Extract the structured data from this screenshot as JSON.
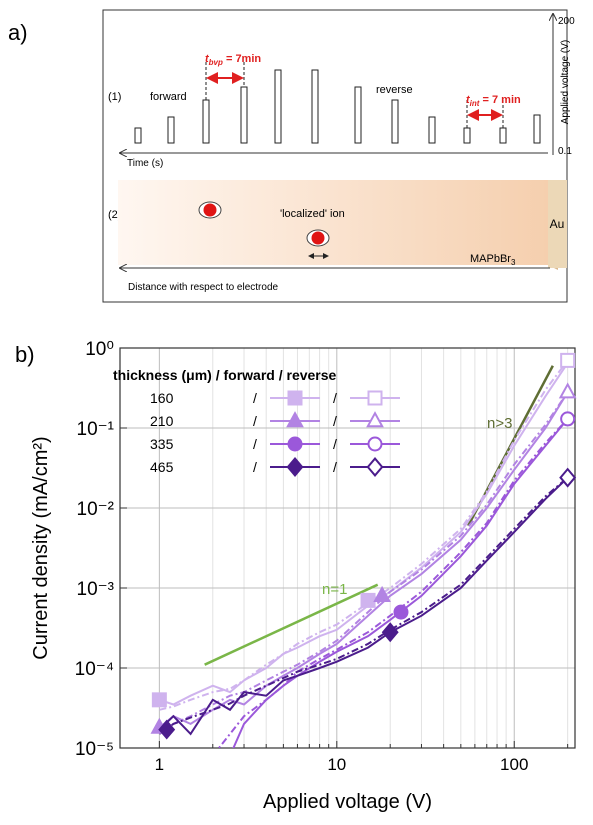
{
  "panel_a": {
    "label": "a)",
    "row1_label": "(1)",
    "row2_label": "(2)",
    "forward": "forward",
    "reverse": "reverse",
    "t_bvp": {
      "t": "t",
      "sub": "bvp",
      "rest": " = 7min"
    },
    "t_int": {
      "t": "t",
      "sub": "int",
      "rest": " = 7 min"
    },
    "time_axis": "Time (s)",
    "voltage_axis": "Applied voltage (V)",
    "voltage_max": "200",
    "voltage_min": "0.1",
    "ion": "'localized' ion",
    "electrode": "Au",
    "material": {
      "main": "MAPbBr",
      "sub": "3"
    },
    "distance_axis": "Distance with respect to electrode"
  },
  "chart_data": {
    "type": "line",
    "panel_label": "b)",
    "x_label": "Applied voltage (V)",
    "y_label": "Current density (mA/cm²)",
    "log_x": true,
    "log_y": true,
    "grid": true,
    "xlim": [
      0.6,
      220
    ],
    "ylim": [
      1e-05,
      1
    ],
    "xticks": [
      1,
      10,
      100
    ],
    "xminor": [
      2,
      3,
      4,
      5,
      6,
      7,
      8,
      9,
      20,
      30,
      40,
      50,
      60,
      70,
      80,
      90,
      200
    ],
    "yticks": [
      {
        "value": 1,
        "label": "10⁰"
      },
      {
        "value": 0.1,
        "label": "10⁻¹"
      },
      {
        "value": 0.01,
        "label": "10⁻²"
      },
      {
        "value": 0.001,
        "label": "10⁻³"
      },
      {
        "value": 0.0001,
        "label": "10⁻⁴"
      },
      {
        "value": 1e-05,
        "label": "10⁻⁵"
      }
    ],
    "legend_title": "thickness (μm) / forward / reverse",
    "legend_separator": "/",
    "x": [
      1,
      1.2,
      1.5,
      2,
      2.5,
      3,
      4,
      5,
      6,
      8,
      10,
      15,
      20,
      30,
      50,
      70,
      100,
      150,
      200
    ],
    "series": [
      {
        "name": "160",
        "color": "#cfb3ee",
        "marker": "square",
        "forward": {
          "values": [
            4e-05,
            3.5e-05,
            4.5e-05,
            6e-05,
            5e-05,
            7e-05,
            0.0001,
            0.00015,
            0.00018,
            0.00025,
            0.0003,
            0.0006,
            0.0009,
            0.0018,
            0.005,
            0.015,
            0.06,
            0.25,
            0.65
          ],
          "marker_x": [
            1,
            15
          ],
          "marker_values": [
            4e-05,
            0.0007
          ]
        },
        "reverse": {
          "values": [
            3e-05,
            3.3e-05,
            4e-05,
            5e-05,
            5.5e-05,
            7e-05,
            0.00011,
            0.00015,
            0.0002,
            0.00028,
            0.00035,
            0.00065,
            0.001,
            0.002,
            0.0055,
            0.016,
            0.07,
            0.3,
            0.7
          ],
          "marker_x": [
            200
          ],
          "marker_values": [
            0.7
          ]
        }
      },
      {
        "name": "210",
        "color": "#b283e3",
        "marker": "triangle",
        "forward": {
          "values": [
            1.8e-05,
            2.5e-05,
            2e-05,
            3e-05,
            4e-05,
            3.5e-05,
            6e-05,
            8e-05,
            0.0001,
            0.00015,
            0.0002,
            0.00045,
            0.0008,
            0.0015,
            0.004,
            0.01,
            0.03,
            0.1,
            0.28
          ],
          "marker_x": [
            1,
            18
          ],
          "marker_values": [
            1.8e-05,
            0.0008
          ]
        },
        "reverse": {
          "values": [
            1.6e-05,
            2e-05,
            2.5e-05,
            3.5e-05,
            4.5e-05,
            5e-05,
            7e-05,
            9e-05,
            0.00011,
            0.00016,
            0.00022,
            0.0005,
            0.0009,
            0.0017,
            0.0045,
            0.011,
            0.035,
            0.11,
            0.28
          ],
          "marker_x": [
            200
          ],
          "marker_values": [
            0.28
          ]
        }
      },
      {
        "name": "335",
        "color": "#9b58da",
        "marker": "circle",
        "forward": {
          "values": [
            null,
            null,
            null,
            null,
            8e-06,
            2e-05,
            4e-05,
            6e-05,
            8e-05,
            0.00012,
            0.00016,
            0.00025,
            0.0004,
            0.0008,
            0.0025,
            0.006,
            0.02,
            0.06,
            0.13
          ],
          "marker_x": [
            23
          ],
          "marker_values": [
            0.0005
          ]
        },
        "reverse": {
          "values": [
            null,
            null,
            null,
            8e-06,
            1.5e-05,
            2.5e-05,
            4e-05,
            6e-05,
            9e-05,
            0.00013,
            0.00017,
            0.00028,
            0.00045,
            0.0009,
            0.0028,
            0.0065,
            0.022,
            0.065,
            0.13
          ],
          "marker_x": [
            200
          ],
          "marker_values": [
            0.13
          ]
        }
      },
      {
        "name": "465",
        "color": "#4b1c8c",
        "marker": "diamond",
        "forward": {
          "values": [
            1.7e-05,
            2.5e-05,
            1.5e-05,
            4e-05,
            3e-05,
            5e-05,
            4.5e-05,
            7e-05,
            8e-05,
            0.0001,
            0.00012,
            0.00018,
            0.00028,
            0.00045,
            0.001,
            0.0022,
            0.005,
            0.013,
            0.024
          ],
          "marker_x": [
            1.1,
            20
          ],
          "marker_values": [
            1.7e-05,
            0.00028
          ]
        },
        "reverse": {
          "values": [
            1.5e-05,
            2e-05,
            2.4e-05,
            3e-05,
            3.6e-05,
            4.5e-05,
            6e-05,
            7.5e-05,
            9e-05,
            0.00011,
            0.00013,
            0.0002,
            0.0003,
            0.0005,
            0.0011,
            0.0024,
            0.0055,
            0.014,
            0.024
          ],
          "marker_x": [
            200
          ],
          "marker_values": [
            0.024
          ]
        }
      }
    ],
    "fit_lines": [
      {
        "label": "n=1",
        "color": "#7ab648",
        "x": [
          1.8,
          17
        ],
        "values": [
          0.00011,
          0.0011
        ]
      },
      {
        "label": "n>3",
        "color": "#5f6e34",
        "x": [
          55,
          165
        ],
        "values": [
          0.006,
          0.6
        ]
      }
    ]
  }
}
